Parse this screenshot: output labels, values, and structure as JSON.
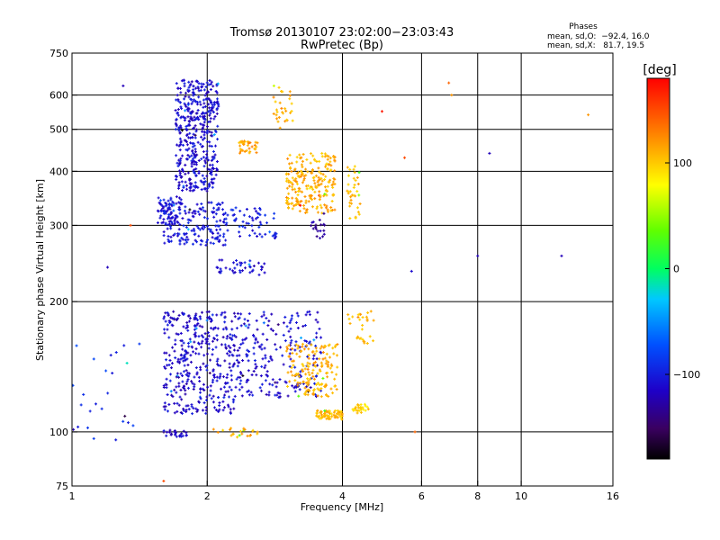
{
  "chart_data": {
    "type": "scatter",
    "title_line1": "Tromsø 20130107 23:02:00−23:03:43",
    "title_line2": "RwPretec (Bp)",
    "xlabel": "Frequency [MHz]",
    "ylabel": "Stationary phase Virtual Height [km]",
    "xscale": "log",
    "yscale": "log",
    "xlim": [
      1,
      16
    ],
    "ylim": [
      75,
      750
    ],
    "xticks": [
      "1",
      "2",
      "4",
      "6",
      "8",
      "10",
      "16"
    ],
    "xtick_values": [
      1,
      2,
      4,
      6,
      8,
      10,
      16
    ],
    "xgrid_values": [
      2,
      4,
      6,
      8,
      10
    ],
    "yticks": [
      "75",
      "100",
      "200",
      "300",
      "400",
      "500",
      "600",
      "750"
    ],
    "ytick_values": [
      75,
      100,
      200,
      300,
      400,
      500,
      600,
      750
    ],
    "ygrid_values": [
      100,
      200,
      300,
      400,
      500,
      600
    ],
    "grid": true,
    "phase_box": {
      "title": "Phases",
      "line1": "mean, sd,O:  −92.4, 16.0",
      "line2": "mean, sd,X:   81.7, 19.5"
    },
    "colorbar": {
      "label": "[deg]",
      "range": [
        -180,
        180
      ],
      "ticks": [
        "100",
        "0",
        "−100"
      ],
      "tick_values": [
        100,
        0,
        -100
      ]
    },
    "series": [
      {
        "clusters": [
          {
            "x": [
              1.7,
              2.12
            ],
            "y": [
              360,
              650
            ],
            "phase": -110,
            "count": 420
          },
          {
            "x": [
              1.55,
              1.75
            ],
            "y": [
              300,
              350
            ],
            "phase": -110,
            "count": 60
          },
          {
            "x": [
              1.6,
              2.2
            ],
            "y": [
              270,
              340
            ],
            "phase": -105,
            "count": 170
          },
          {
            "x": [
              2.2,
              2.85
            ],
            "y": [
              280,
              330
            ],
            "phase": -100,
            "count": 60
          },
          {
            "x": [
              2.1,
              2.7
            ],
            "y": [
              230,
              250
            ],
            "phase": -110,
            "count": 40
          },
          {
            "x": [
              2.35,
              2.6
            ],
            "y": [
              440,
              470
            ],
            "phase": 115,
            "count": 35
          },
          {
            "x": [
              2.8,
              3.1
            ],
            "y": [
              500,
              640
            ],
            "phase": 110,
            "count": 30
          },
          {
            "x": [
              3.0,
              3.85
            ],
            "y": [
              320,
              440
            ],
            "phase": 110,
            "count": 230
          },
          {
            "x": [
              3.4,
              3.65
            ],
            "y": [
              280,
              320
            ],
            "phase": -130,
            "count": 20
          },
          {
            "x": [
              4.1,
              4.4
            ],
            "y": [
              310,
              420
            ],
            "phase": 105,
            "count": 35
          },
          {
            "x": [
              1.6,
              2.3
            ],
            "y": [
              110,
              190
            ],
            "phase": -112,
            "count": 380
          },
          {
            "x": [
              2.3,
              3.6
            ],
            "y": [
              120,
              190
            ],
            "phase": -110,
            "count": 230
          },
          {
            "x": [
              3.0,
              3.9
            ],
            "y": [
              120,
              160
            ],
            "phase": 110,
            "count": 160
          },
          {
            "x": [
              3.5,
              4.0
            ],
            "y": [
              107,
              112
            ],
            "phase": 105,
            "count": 70
          },
          {
            "x": [
              4.1,
              4.7
            ],
            "y": [
              160,
              190
            ],
            "phase": 110,
            "count": 30
          },
          {
            "x": [
              4.2,
              4.6
            ],
            "y": [
              110,
              116
            ],
            "phase": 95,
            "count": 25
          },
          {
            "x": [
              1.6,
              1.8
            ],
            "y": [
              97,
              101
            ],
            "phase": -112,
            "count": 25
          },
          {
            "x": [
              2.05,
              2.6
            ],
            "y": [
              97,
              102
            ],
            "phase": 110,
            "count": 22
          },
          {
            "x": [
              1.0,
              1.45
            ],
            "y": [
              95,
              160
            ],
            "phase": -90,
            "count": 25
          }
        ],
        "isolated_points": [
          {
            "x": 1.3,
            "y": 630,
            "phase": -120
          },
          {
            "x": 1.2,
            "y": 240,
            "phase": -120
          },
          {
            "x": 1.35,
            "y": 300,
            "phase": 150
          },
          {
            "x": 7.0,
            "y": 600,
            "phase": 120
          },
          {
            "x": 6.9,
            "y": 640,
            "phase": 140
          },
          {
            "x": 8.5,
            "y": 440,
            "phase": -120
          },
          {
            "x": 8.0,
            "y": 255,
            "phase": -120
          },
          {
            "x": 12.3,
            "y": 255,
            "phase": -120
          },
          {
            "x": 14.1,
            "y": 540,
            "phase": 120
          },
          {
            "x": 5.5,
            "y": 430,
            "phase": 150
          },
          {
            "x": 4.9,
            "y": 550,
            "phase": 170
          },
          {
            "x": 5.7,
            "y": 235,
            "phase": -110
          },
          {
            "x": 5.8,
            "y": 100,
            "phase": 140
          },
          {
            "x": 1.6,
            "y": 77,
            "phase": 150
          }
        ]
      }
    ]
  }
}
